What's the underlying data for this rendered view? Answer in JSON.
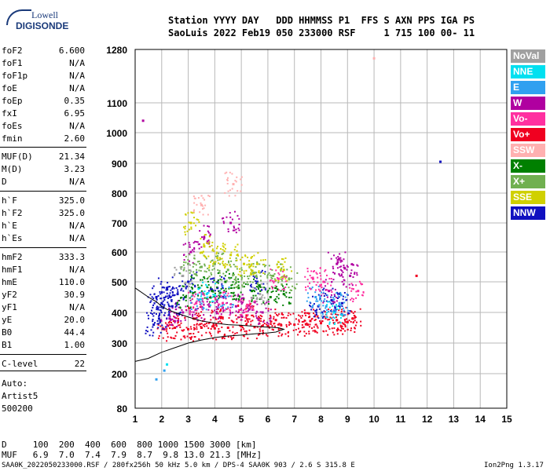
{
  "logo": {
    "line1": "Lowell",
    "line2": "DIGISONDE"
  },
  "header": {
    "line1": "Station YYYY DAY   DDD HHMMSS P1  FFS S AXN PPS IGA PS",
    "line2": "SaoLuis 2022 Feb19 050 233000 RSF     1 715 100 00- 11"
  },
  "params_a": [
    {
      "name": "foF2",
      "value": "6.600"
    },
    {
      "name": "foF1",
      "value": "N/A"
    },
    {
      "name": "foF1p",
      "value": "N/A"
    },
    {
      "name": "foE",
      "value": "N/A"
    },
    {
      "name": "foEp",
      "value": "0.35"
    },
    {
      "name": "fxI",
      "value": "6.95"
    },
    {
      "name": "foEs",
      "value": "N/A"
    },
    {
      "name": "fmin",
      "value": "2.60"
    }
  ],
  "params_b": [
    {
      "name": "MUF(D)",
      "value": "21.34"
    },
    {
      "name": "M(D)",
      "value": "3.23"
    },
    {
      "name": "D",
      "value": "N/A"
    }
  ],
  "params_c": [
    {
      "name": "h`F",
      "value": "325.0"
    },
    {
      "name": "h`F2",
      "value": "325.0"
    },
    {
      "name": "h`E",
      "value": "N/A"
    },
    {
      "name": "h`Es",
      "value": "N/A"
    }
  ],
  "params_d": [
    {
      "name": "hmF2",
      "value": "333.3"
    },
    {
      "name": "hmF1",
      "value": "N/A"
    },
    {
      "name": "hmE",
      "value": "110.0"
    },
    {
      "name": "yF2",
      "value": "30.9"
    },
    {
      "name": "yF1",
      "value": "N/A"
    },
    {
      "name": "yE",
      "value": "20.0"
    },
    {
      "name": "B0",
      "value": "44.4"
    },
    {
      "name": "B1",
      "value": "1.00"
    }
  ],
  "params_e": [
    {
      "name": "C-level",
      "value": "22"
    }
  ],
  "autoscale": {
    "line1": "Auto:",
    "line2": "Artist5",
    "line3": "500200"
  },
  "legend": [
    {
      "label": "NoVal",
      "color": "#a0a0a0"
    },
    {
      "label": "NNE",
      "color": "#00e0f0"
    },
    {
      "label": "E",
      "color": "#30a0f0"
    },
    {
      "label": "W",
      "color": "#b000a0"
    },
    {
      "label": "Vo-",
      "color": "#ff30a0"
    },
    {
      "label": "Vo+",
      "color": "#f00020"
    },
    {
      "label": "SSW",
      "color": "#ffb0b0"
    },
    {
      "label": "X-",
      "color": "#008000"
    },
    {
      "label": "X+",
      "color": "#70b050"
    },
    {
      "label": "SSE",
      "color": "#d0d000"
    },
    {
      "label": "NNW",
      "color": "#1010c0"
    }
  ],
  "footer": {
    "d_line": "D     100  200  400  600  800 1000 1500 3000 [km]",
    "muf_line": "MUF   6.9  7.0  7.4  7.9  8.7  9.8 13.0 21.3 [MHz]",
    "file_line": "SAA0K_2022050233000.RSF / 280fx256h 50 kHz 5.0 km / DPS-4 SAA0K 903 / 2.6 S 315.8 E",
    "version": "Ion2Png 1.3.17"
  },
  "chart_data": {
    "type": "scatter",
    "title": "",
    "xlabel": "",
    "ylabel": "",
    "xlim": [
      1,
      15
    ],
    "ylim": [
      80,
      1280
    ],
    "y_scale": "nonlinear",
    "x_ticks": [
      "1",
      "2",
      "3",
      "4",
      "5",
      "6",
      "7",
      "8",
      "9",
      "10",
      "11",
      "12",
      "13",
      "14",
      "15"
    ],
    "y_ticks": [
      {
        "v": 80,
        "label": "80"
      },
      {
        "v": 200,
        "label": "200"
      },
      {
        "v": 300,
        "label": "300"
      },
      {
        "v": 400,
        "label": "400"
      },
      {
        "v": 500,
        "label": "500"
      },
      {
        "v": 600,
        "label": "600"
      },
      {
        "v": 700,
        "label": "700"
      },
      {
        "v": 800,
        "label": "800"
      },
      {
        "v": 900,
        "label": "900"
      },
      {
        "v": 1000,
        "label": "1000"
      },
      {
        "v": 1100,
        "label": "1100"
      },
      {
        "v": 1280,
        "label": "1280"
      }
    ],
    "grid": true,
    "series": [
      {
        "name": "Vo+",
        "color": "#f00020",
        "points": [
          [
            2.1,
            345
          ],
          [
            2.5,
            350
          ],
          [
            3.0,
            345
          ],
          [
            3.5,
            350
          ],
          [
            4.0,
            348
          ],
          [
            4.5,
            350
          ],
          [
            5.0,
            355
          ],
          [
            5.5,
            352
          ],
          [
            6.0,
            355
          ],
          [
            6.5,
            358
          ],
          [
            7.0,
            360
          ],
          [
            7.5,
            360
          ],
          [
            8.0,
            365
          ],
          [
            8.5,
            365
          ],
          [
            9.0,
            368
          ],
          [
            3.2,
            380
          ],
          [
            4.2,
            385
          ],
          [
            5.2,
            390
          ],
          [
            6.3,
            375
          ],
          [
            7.6,
            372
          ],
          [
            8.6,
            375
          ],
          [
            9.2,
            380
          ],
          [
            11.6,
            520
          ]
        ]
      },
      {
        "name": "W",
        "color": "#b000a0",
        "points": [
          [
            2.3,
            380
          ],
          [
            2.8,
            400
          ],
          [
            3.3,
            410
          ],
          [
            3.8,
            420
          ],
          [
            4.3,
            415
          ],
          [
            4.8,
            420
          ],
          [
            5.3,
            410
          ],
          [
            5.8,
            400
          ],
          [
            3.1,
            600
          ],
          [
            3.6,
            650
          ],
          [
            4.6,
            700
          ],
          [
            8.6,
            560
          ],
          [
            8.9,
            545
          ],
          [
            9.1,
            520
          ],
          [
            8.3,
            470
          ],
          [
            1.3,
            1040
          ]
        ]
      },
      {
        "name": "NNW",
        "color": "#1010c0",
        "points": [
          [
            1.7,
            360
          ],
          [
            1.8,
            450
          ],
          [
            1.9,
            380
          ],
          [
            2.0,
            430
          ],
          [
            2.2,
            480
          ],
          [
            2.4,
            420
          ],
          [
            2.6,
            460
          ],
          [
            3.0,
            500
          ],
          [
            4.1,
            480
          ],
          [
            5.6,
            500
          ],
          [
            7.9,
            420
          ],
          [
            8.4,
            440
          ],
          [
            8.8,
            430
          ],
          [
            12.5,
            905
          ]
        ]
      },
      {
        "name": "X-",
        "color": "#008000",
        "points": [
          [
            2.9,
            450
          ],
          [
            3.4,
            480
          ],
          [
            3.9,
            470
          ],
          [
            4.4,
            500
          ],
          [
            4.9,
            480
          ],
          [
            5.4,
            470
          ],
          [
            6.1,
            450
          ],
          [
            6.6,
            460
          ]
        ]
      },
      {
        "name": "X+",
        "color": "#70b050",
        "points": [
          [
            3.0,
            560
          ],
          [
            3.5,
            550
          ],
          [
            4.0,
            560
          ],
          [
            4.5,
            540
          ],
          [
            5.0,
            520
          ],
          [
            5.5,
            530
          ],
          [
            6.2,
            520
          ],
          [
            6.8,
            510
          ]
        ]
      },
      {
        "name": "SSE",
        "color": "#d0d000",
        "points": [
          [
            3.1,
            700
          ],
          [
            3.6,
            620
          ],
          [
            4.1,
            580
          ],
          [
            4.6,
            590
          ],
          [
            5.1,
            560
          ],
          [
            5.6,
            560
          ],
          [
            6.6,
            540
          ]
        ]
      },
      {
        "name": "E",
        "color": "#30a0f0",
        "points": [
          [
            3.4,
            440
          ],
          [
            4.4,
            450
          ],
          [
            7.8,
            450
          ],
          [
            8.2,
            420
          ],
          [
            8.7,
            430
          ],
          [
            1.8,
            180
          ],
          [
            2.1,
            210
          ]
        ]
      },
      {
        "name": "NNE",
        "color": "#00e0f0",
        "points": [
          [
            2.2,
            230
          ],
          [
            3.7,
            460
          ],
          [
            8.5,
            400
          ]
        ]
      },
      {
        "name": "Vo-",
        "color": "#ff30a0",
        "points": [
          [
            3.3,
            430
          ],
          [
            4.3,
            430
          ],
          [
            5.2,
            420
          ],
          [
            6.4,
            510
          ],
          [
            7.7,
            510
          ],
          [
            8.1,
            500
          ],
          [
            9.4,
            470
          ]
        ]
      },
      {
        "name": "SSW",
        "color": "#ffb0b0",
        "points": [
          [
            10.0,
            1250
          ],
          [
            3.5,
            760
          ],
          [
            4.7,
            830
          ]
        ]
      },
      {
        "name": "NoVal",
        "color": "#a0a0a0",
        "points": [
          [
            2.8,
            520
          ],
          [
            5.7,
            460
          ]
        ]
      }
    ],
    "trace": {
      "color": "#000000",
      "points": [
        [
          1.0,
          240
        ],
        [
          1.5,
          250
        ],
        [
          2.0,
          270
        ],
        [
          2.5,
          285
        ],
        [
          3.0,
          300
        ],
        [
          3.5,
          310
        ],
        [
          4.0,
          318
        ],
        [
          4.5,
          323
        ],
        [
          5.0,
          326
        ],
        [
          5.5,
          330
        ],
        [
          6.0,
          333
        ],
        [
          6.3,
          336
        ],
        [
          6.6,
          345
        ],
        [
          6.4,
          350
        ],
        [
          6.0,
          352
        ],
        [
          5.5,
          355
        ],
        [
          5.0,
          358
        ],
        [
          4.5,
          360
        ],
        [
          4.0,
          365
        ],
        [
          3.5,
          372
        ],
        [
          3.0,
          385
        ],
        [
          2.5,
          400
        ],
        [
          2.2,
          410
        ],
        [
          2.0,
          420
        ],
        [
          1.8,
          435
        ],
        [
          1.5,
          450
        ],
        [
          1.0,
          480
        ]
      ]
    }
  }
}
